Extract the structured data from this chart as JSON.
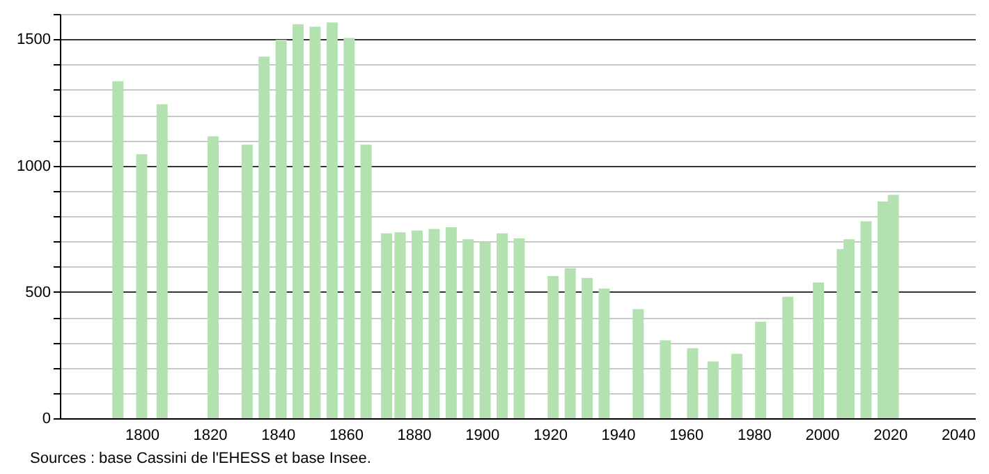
{
  "chart_data": {
    "type": "bar",
    "x": [
      1793,
      1800,
      1806,
      1821,
      1831,
      1836,
      1841,
      1846,
      1851,
      1856,
      1861,
      1866,
      1872,
      1876,
      1881,
      1886,
      1891,
      1896,
      1901,
      1906,
      1911,
      1921,
      1926,
      1931,
      1936,
      1946,
      1954,
      1962,
      1968,
      1975,
      1982,
      1990,
      1999,
      2006,
      2008,
      2013,
      2018,
      2021
    ],
    "values": [
      1334,
      1045,
      1243,
      1116,
      1083,
      1431,
      1498,
      1559,
      1550,
      1566,
      1505,
      1083,
      732,
      736,
      743,
      749,
      756,
      708,
      697,
      732,
      712,
      563,
      594,
      555,
      513,
      432,
      308,
      277,
      225,
      255,
      382,
      481,
      537,
      670,
      708,
      779,
      858,
      884
    ],
    "color": "#b3e2b0",
    "xlim": [
      1778,
      2043
    ],
    "xticks": [
      1800,
      1820,
      1840,
      1860,
      1880,
      1900,
      1920,
      1940,
      1960,
      1980,
      2000,
      2020,
      2040
    ],
    "ylim": [
      0,
      1600
    ],
    "yticks": [
      0,
      {
        "value": 100,
        "label": null
      },
      {
        "value": 200,
        "label": null
      },
      {
        "value": 300,
        "label": null
      },
      {
        "value": 400,
        "label": null
      },
      500,
      {
        "value": 600,
        "label": null
      },
      {
        "value": 700,
        "label": null
      },
      {
        "value": 800,
        "label": null
      },
      {
        "value": 900,
        "label": null
      },
      1000,
      {
        "value": 1100,
        "label": null
      },
      {
        "value": 1200,
        "label": null
      },
      {
        "value": 1300,
        "label": null
      },
      {
        "value": 1400,
        "label": null
      },
      1500,
      {
        "value": 1600,
        "label": null
      }
    ],
    "grid": "y",
    "annotations": [
      "Sources : base Cassini de l'EHESS et base Insee."
    ]
  }
}
